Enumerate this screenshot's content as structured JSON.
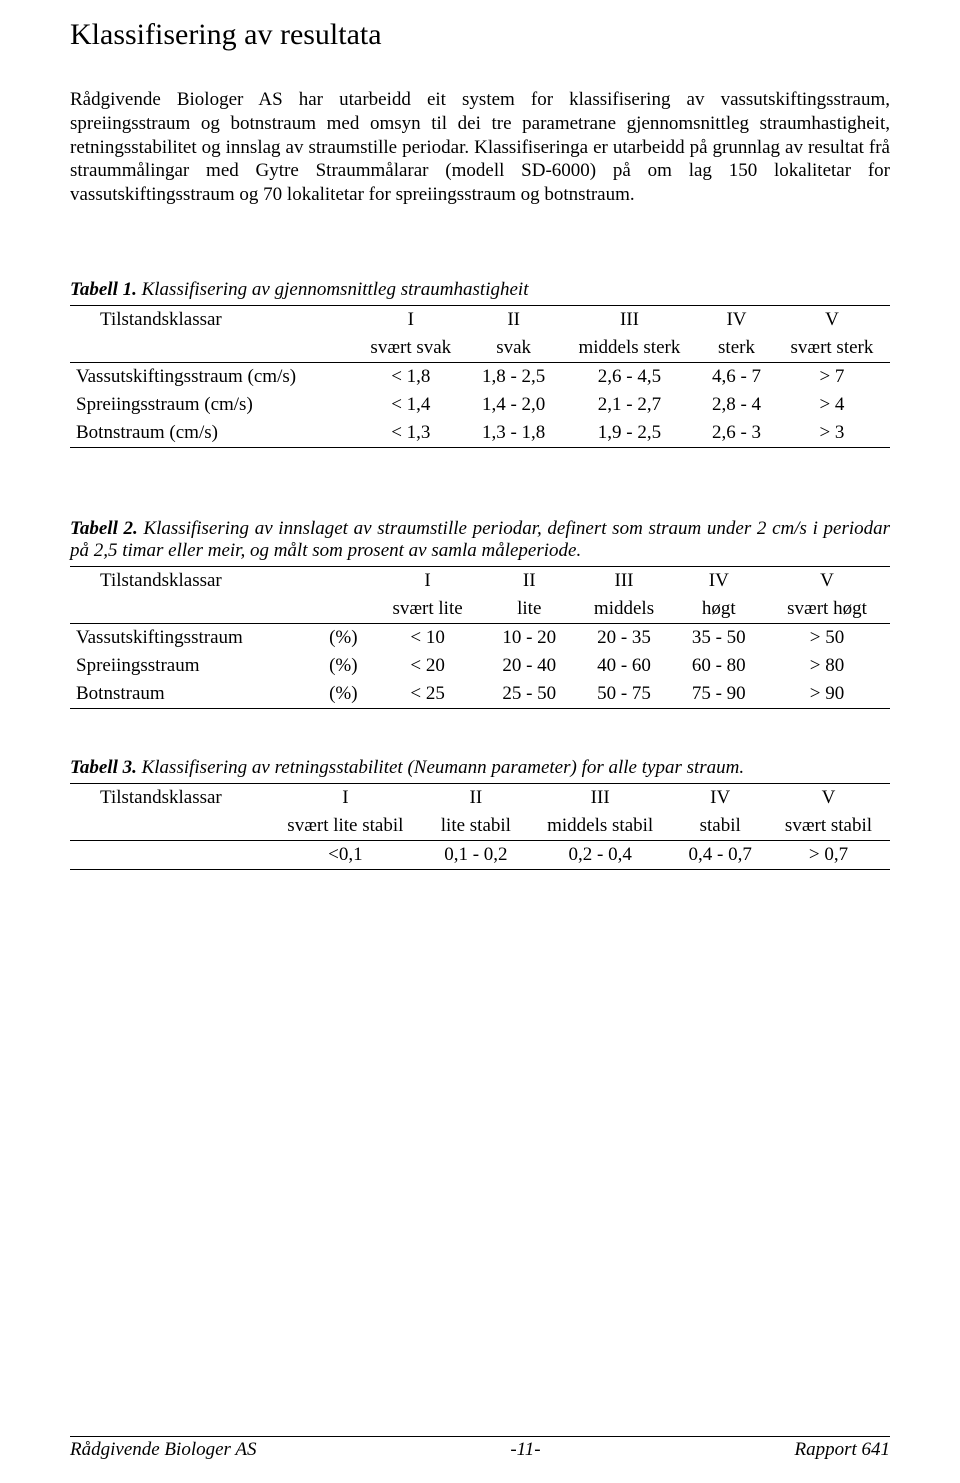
{
  "title": "Klassifisering av resultata",
  "para1": "Rådgivende Biologer AS har utarbeidd eit system for klassifisering av vassutskiftingsstraum, spreiingsstraum og botnstraum med omsyn til dei tre parametrane gjennomsnittleg straumhastigheit, retningsstabilitet og innslag av straumstille periodar. Klassifiseringa er utarbeidd på grunnlag av resultat frå straummålingar med Gytre Straummålarar (modell SD-6000) på om lag 150 lokalitetar for vassutskiftingsstraum og 70 lokalitetar for spreiingsstraum og botnstraum.",
  "tab1": {
    "label": "Tabell 1.",
    "caption": "Klassifisering av gjennomsnittleg straumhastigheit",
    "head": {
      "c0": "Tilstandsklassar",
      "c1": "I",
      "c2": "II",
      "c3": "III",
      "c4": "IV",
      "c5": "V"
    },
    "sub": {
      "c1": "svært svak",
      "c2": "svak",
      "c3": "middels sterk",
      "c4": "sterk",
      "c5": "svært sterk"
    },
    "r1": {
      "c0": "Vassutskiftingsstraum (cm/s)",
      "c1": "< 1,8",
      "c2": "1,8 - 2,5",
      "c3": "2,6 - 4,5",
      "c4": "4,6 - 7",
      "c5": "> 7"
    },
    "r2": {
      "c0": "Spreiingsstraum (cm/s)",
      "c1": "< 1,4",
      "c2": "1,4 - 2,0",
      "c3": "2,1 - 2,7",
      "c4": "2,8 - 4",
      "c5": "> 4"
    },
    "r3": {
      "c0": "Botnstraum (cm/s)",
      "c1": "< 1,3",
      "c2": "1,3 - 1,8",
      "c3": "1,9 - 2,5",
      "c4": "2,6 - 3",
      "c5": "> 3"
    }
  },
  "tab2": {
    "label": "Tabell 2.",
    "caption": "Klassifisering av innslaget av straumstille periodar, definert som straum under 2 cm/s i periodar på 2,5 timar eller meir, og målt som prosent av samla måleperiode.",
    "head": {
      "c0": "Tilstandsklassar",
      "c1": "I",
      "c2": "II",
      "c3": "III",
      "c4": "IV",
      "c5": "V"
    },
    "sub": {
      "c1": "svært lite",
      "c2": "lite",
      "c3": "middels",
      "c4": "høgt",
      "c5": "svært høgt"
    },
    "r1": {
      "c0a": "Vassutskiftingsstraum",
      "c0b": "(%)",
      "c1": "< 10",
      "c2": "10 - 20",
      "c3": "20 - 35",
      "c4": "35 - 50",
      "c5": "> 50"
    },
    "r2": {
      "c0a": "Spreiingsstraum",
      "c0b": "(%)",
      "c1": "< 20",
      "c2": "20 - 40",
      "c3": "40 - 60",
      "c4": "60 - 80",
      "c5": "> 80"
    },
    "r3": {
      "c0a": "Botnstraum",
      "c0b": "(%)",
      "c1": "< 25",
      "c2": "25 - 50",
      "c3": "50 - 75",
      "c4": "75 - 90",
      "c5": "> 90"
    }
  },
  "tab3": {
    "label": "Tabell 3.",
    "caption": "Klassifisering av retningsstabilitet (Neumann parameter) for alle typar straum.",
    "head": {
      "c0": "Tilstandsklassar",
      "c1": "I",
      "c2": "II",
      "c3": "III",
      "c4": "IV",
      "c5": "V"
    },
    "sub": {
      "c1": "svært lite stabil",
      "c2": "lite stabil",
      "c3": "middels stabil",
      "c4": "stabil",
      "c5": "svært stabil"
    },
    "r1": {
      "c1": "<0,1",
      "c2": "0,1 - 0,2",
      "c3": "0,2 - 0,4",
      "c4": "0,4 - 0,7",
      "c5": "> 0,7"
    }
  },
  "footer": {
    "left": "Rådgivende Biologer AS",
    "center": "-11-",
    "right": "Rapport 641"
  }
}
